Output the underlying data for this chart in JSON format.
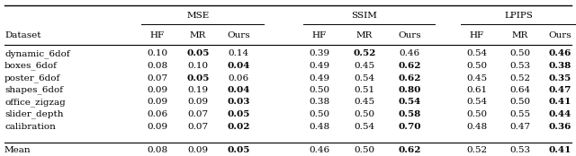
{
  "col_groups": [
    {
      "label": "MSE"
    },
    {
      "label": "SSIM"
    },
    {
      "label": "LPIPS"
    }
  ],
  "row_header": "Dataset",
  "rows": [
    {
      "name": "dynamic_6dof",
      "mse": [
        "0.10",
        "0.05",
        "0.14"
      ],
      "ssim": [
        "0.39",
        "0.52",
        "0.46"
      ],
      "lpips": [
        "0.54",
        "0.50",
        "0.46"
      ]
    },
    {
      "name": "boxes_6dof",
      "mse": [
        "0.08",
        "0.10",
        "0.04"
      ],
      "ssim": [
        "0.49",
        "0.45",
        "0.62"
      ],
      "lpips": [
        "0.50",
        "0.53",
        "0.38"
      ]
    },
    {
      "name": "poster_6dof",
      "mse": [
        "0.07",
        "0.05",
        "0.06"
      ],
      "ssim": [
        "0.49",
        "0.54",
        "0.62"
      ],
      "lpips": [
        "0.45",
        "0.52",
        "0.35"
      ]
    },
    {
      "name": "shapes_6dof",
      "mse": [
        "0.09",
        "0.19",
        "0.04"
      ],
      "ssim": [
        "0.50",
        "0.51",
        "0.80"
      ],
      "lpips": [
        "0.61",
        "0.64",
        "0.47"
      ]
    },
    {
      "name": "office_zigzag",
      "mse": [
        "0.09",
        "0.09",
        "0.03"
      ],
      "ssim": [
        "0.38",
        "0.45",
        "0.54"
      ],
      "lpips": [
        "0.54",
        "0.50",
        "0.41"
      ]
    },
    {
      "name": "slider_depth",
      "mse": [
        "0.06",
        "0.07",
        "0.05"
      ],
      "ssim": [
        "0.50",
        "0.50",
        "0.58"
      ],
      "lpips": [
        "0.50",
        "0.55",
        "0.44"
      ]
    },
    {
      "name": "calibration",
      "mse": [
        "0.09",
        "0.07",
        "0.02"
      ],
      "ssim": [
        "0.48",
        "0.54",
        "0.70"
      ],
      "lpips": [
        "0.48",
        "0.47",
        "0.36"
      ]
    }
  ],
  "mean_row": {
    "name": "Mean",
    "mse": [
      "0.08",
      "0.09",
      "0.05"
    ],
    "ssim": [
      "0.46",
      "0.50",
      "0.62"
    ],
    "lpips": [
      "0.52",
      "0.53",
      "0.41"
    ]
  },
  "bold_mse": [
    1,
    2,
    1,
    2,
    2,
    2,
    2
  ],
  "bold_ssim": [
    1,
    2,
    2,
    2,
    2,
    2,
    2
  ],
  "bold_lpips": [
    2,
    2,
    2,
    2,
    2,
    2,
    2
  ],
  "mean_bold_mse": 2,
  "mean_bold_ssim": 2,
  "mean_bold_lpips": 2,
  "font_size": 7.5,
  "bg_color": "#ffffff"
}
